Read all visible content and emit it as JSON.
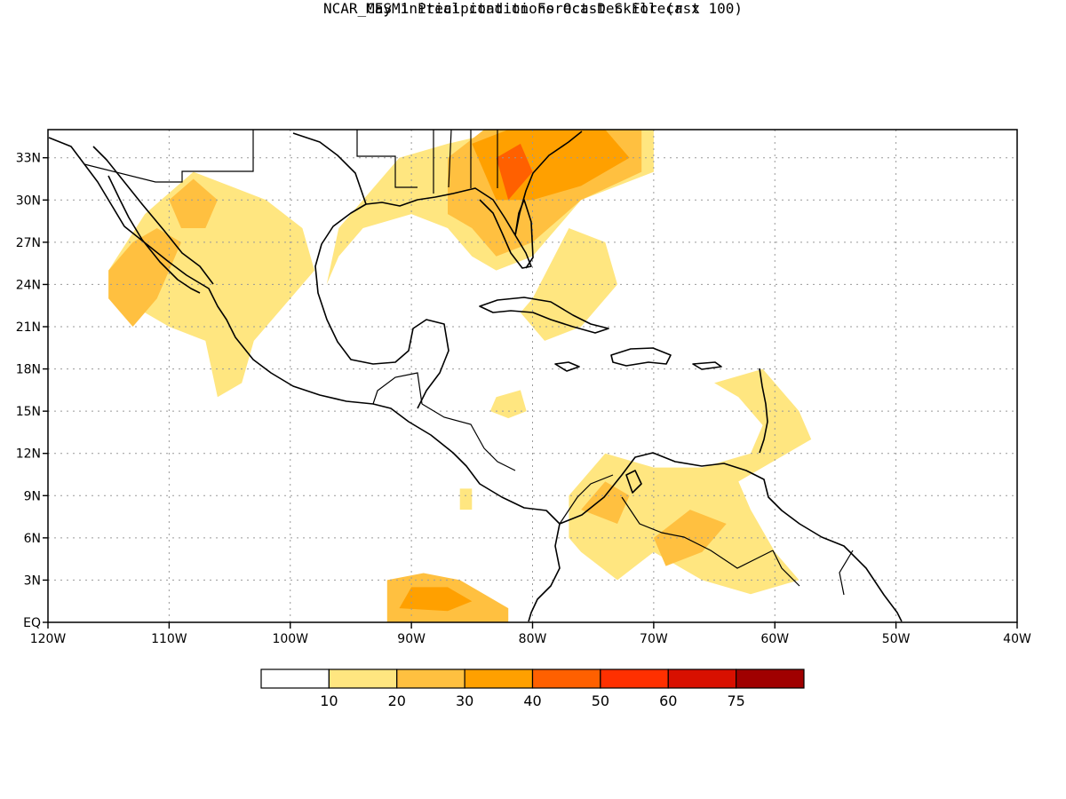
{
  "title": "NCAR_CESM1 Precipitation Forecast Skill (r x 100)",
  "subtitle": "May initial conditions  Oct-Dec Forecast",
  "chart_data": {
    "type": "heatmap",
    "xlim": [
      -120,
      -40
    ],
    "ylim": [
      0,
      35
    ],
    "x_ticks": [
      -120,
      -110,
      -100,
      -90,
      -80,
      -70,
      -60,
      -50,
      -40
    ],
    "x_tick_labels": [
      "120W",
      "110W",
      "100W",
      "90W",
      "80W",
      "70W",
      "60W",
      "50W",
      "40W"
    ],
    "y_ticks": [
      0,
      3,
      6,
      9,
      12,
      15,
      18,
      21,
      24,
      27,
      30,
      33
    ],
    "y_tick_labels": [
      "EQ",
      "3N",
      "6N",
      "9N",
      "12N",
      "15N",
      "18N",
      "21N",
      "24N",
      "27N",
      "30N",
      "33N"
    ],
    "grid": true,
    "colorbar": {
      "labels": [
        "10",
        "20",
        "30",
        "40",
        "50",
        "60",
        "75"
      ],
      "colors": [
        "#ffffff",
        "#ffe680",
        "#ffc040",
        "#ffa000",
        "#ff6000",
        "#ff3000",
        "#d81000",
        "#a00000"
      ]
    },
    "regions": [
      {
        "name": "baja-mexico-west",
        "level": 10,
        "polygon": [
          [
            -115,
            25
          ],
          [
            -112,
            29
          ],
          [
            -108,
            32
          ],
          [
            -105,
            31
          ],
          [
            -102,
            30
          ],
          [
            -99,
            28
          ],
          [
            -98,
            25
          ],
          [
            -100,
            23
          ],
          [
            -103,
            20
          ],
          [
            -104,
            17
          ],
          [
            -106,
            16
          ],
          [
            -107,
            20
          ],
          [
            -110,
            21
          ],
          [
            -112,
            22
          ],
          [
            -115,
            23
          ]
        ]
      },
      {
        "name": "baja-core",
        "level": 20,
        "polygon": [
          [
            -115,
            25
          ],
          [
            -113,
            27
          ],
          [
            -111,
            28
          ],
          [
            -109,
            27
          ],
          [
            -110,
            25
          ],
          [
            -111,
            23
          ],
          [
            -113,
            21
          ],
          [
            -115,
            23
          ]
        ]
      },
      {
        "name": "sonora-core",
        "level": 20,
        "polygon": [
          [
            -110,
            30
          ],
          [
            -108,
            31.5
          ],
          [
            -106,
            30
          ],
          [
            -107,
            28
          ],
          [
            -109,
            28
          ]
        ]
      },
      {
        "name": "gulf-coast-us",
        "level": 10,
        "polygon": [
          [
            -94,
            30
          ],
          [
            -91,
            33
          ],
          [
            -87,
            34
          ],
          [
            -82,
            35
          ],
          [
            -75,
            35
          ],
          [
            -70,
            35
          ],
          [
            -70,
            32
          ],
          [
            -76,
            30
          ],
          [
            -78,
            28
          ],
          [
            -80,
            26
          ],
          [
            -83,
            25
          ],
          [
            -85,
            26
          ],
          [
            -87,
            28
          ],
          [
            -90,
            29
          ],
          [
            -94,
            28
          ],
          [
            -96,
            26
          ],
          [
            -97,
            24
          ],
          [
            -96,
            28
          ]
        ]
      },
      {
        "name": "southeast-us-core",
        "level": 20,
        "polygon": [
          [
            -87,
            33
          ],
          [
            -84,
            35
          ],
          [
            -76,
            35
          ],
          [
            -71,
            35
          ],
          [
            -71,
            32
          ],
          [
            -76,
            30
          ],
          [
            -80,
            27
          ],
          [
            -83,
            26
          ],
          [
            -85,
            28
          ],
          [
            -87,
            29
          ]
        ]
      },
      {
        "name": "southeast-us-peak",
        "level": 30,
        "polygon": [
          [
            -85,
            34
          ],
          [
            -82,
            35
          ],
          [
            -74,
            35
          ],
          [
            -72,
            33
          ],
          [
            -76,
            31
          ],
          [
            -80,
            30
          ],
          [
            -83,
            30
          ]
        ]
      },
      {
        "name": "georgia-max",
        "level": 40,
        "polygon": [
          [
            -83,
            33
          ],
          [
            -81,
            34
          ],
          [
            -80,
            32
          ],
          [
            -82,
            30
          ]
        ]
      },
      {
        "name": "bahamas-cuba",
        "level": 10,
        "polygon": [
          [
            -80,
            23
          ],
          [
            -77,
            28
          ],
          [
            -74,
            27
          ],
          [
            -73,
            24
          ],
          [
            -76,
            21
          ],
          [
            -79,
            20
          ],
          [
            -81,
            22
          ]
        ]
      },
      {
        "name": "gulf-of-honduras-spot",
        "level": 10,
        "polygon": [
          [
            -83,
            16
          ],
          [
            -81,
            16.5
          ],
          [
            -80.5,
            15
          ],
          [
            -82,
            14.5
          ],
          [
            -83.5,
            15
          ]
        ]
      },
      {
        "name": "caribbean-south-americas",
        "level": 10,
        "polygon": [
          [
            -77,
            9
          ],
          [
            -74,
            12
          ],
          [
            -70,
            11
          ],
          [
            -66,
            11
          ],
          [
            -62,
            12
          ],
          [
            -61,
            14
          ],
          [
            -63,
            16
          ],
          [
            -65,
            17
          ],
          [
            -61,
            18
          ],
          [
            -58,
            15
          ],
          [
            -57,
            13
          ],
          [
            -59,
            12
          ],
          [
            -63,
            10
          ],
          [
            -62,
            8
          ],
          [
            -60,
            5
          ],
          [
            -58,
            3
          ],
          [
            -62,
            2
          ],
          [
            -66,
            3
          ],
          [
            -68,
            4
          ],
          [
            -70,
            5
          ],
          [
            -73,
            3
          ],
          [
            -76,
            5
          ],
          [
            -77,
            6
          ]
        ]
      },
      {
        "name": "colombia-core",
        "level": 20,
        "polygon": [
          [
            -76,
            8
          ],
          [
            -74,
            10
          ],
          [
            -72,
            9
          ],
          [
            -73,
            7
          ]
        ]
      },
      {
        "name": "venezuela-core",
        "level": 20,
        "polygon": [
          [
            -70,
            6
          ],
          [
            -67,
            8
          ],
          [
            -64,
            7
          ],
          [
            -66,
            5
          ],
          [
            -69,
            4
          ]
        ]
      },
      {
        "name": "pacific-equatorial",
        "level": 20,
        "polygon": [
          [
            -92,
            0
          ],
          [
            -92,
            3
          ],
          [
            -89,
            3.5
          ],
          [
            -86,
            3
          ],
          [
            -84,
            2
          ],
          [
            -82,
            1
          ],
          [
            -82,
            0
          ]
        ]
      },
      {
        "name": "pacific-equatorial-core",
        "level": 30,
        "polygon": [
          [
            -91,
            1
          ],
          [
            -90,
            2.5
          ],
          [
            -87,
            2.5
          ],
          [
            -85,
            1.5
          ],
          [
            -87,
            0.8
          ]
        ]
      },
      {
        "name": "guatemala-spot",
        "level": 10,
        "polygon": [
          [
            -86,
            9.5
          ],
          [
            -85,
            9.5
          ],
          [
            -85,
            8
          ],
          [
            -86,
            8
          ]
        ]
      }
    ]
  }
}
